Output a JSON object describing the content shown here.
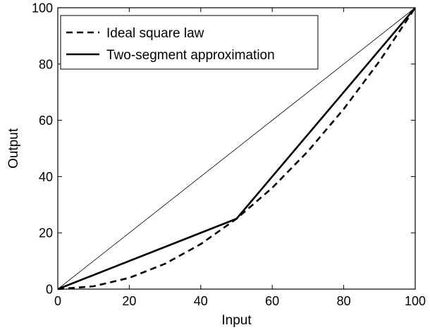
{
  "chart_data": {
    "type": "line",
    "xlabel": "Input",
    "ylabel": "Output",
    "xlim": [
      0,
      100
    ],
    "ylim": [
      0,
      100
    ],
    "x_ticks": [
      0,
      20,
      40,
      60,
      80,
      100
    ],
    "y_ticks": [
      0,
      20,
      40,
      60,
      80,
      100
    ],
    "grid": false,
    "legend_position": "top-left",
    "series": [
      {
        "name": "Ideal square law",
        "style": "dashed",
        "color": "#000000",
        "x": [
          0,
          10,
          20,
          30,
          40,
          50,
          60,
          70,
          80,
          90,
          100
        ],
        "y": [
          0,
          1,
          4,
          9,
          16,
          25,
          36,
          49,
          64,
          81,
          100
        ]
      },
      {
        "name": "Two-segment approximation",
        "style": "solid",
        "color": "#000000",
        "x": [
          0,
          50,
          100
        ],
        "y": [
          0,
          25,
          100
        ]
      },
      {
        "style": "thin",
        "color": "#000000",
        "x": [
          0,
          100
        ],
        "y": [
          0,
          100
        ]
      }
    ]
  }
}
